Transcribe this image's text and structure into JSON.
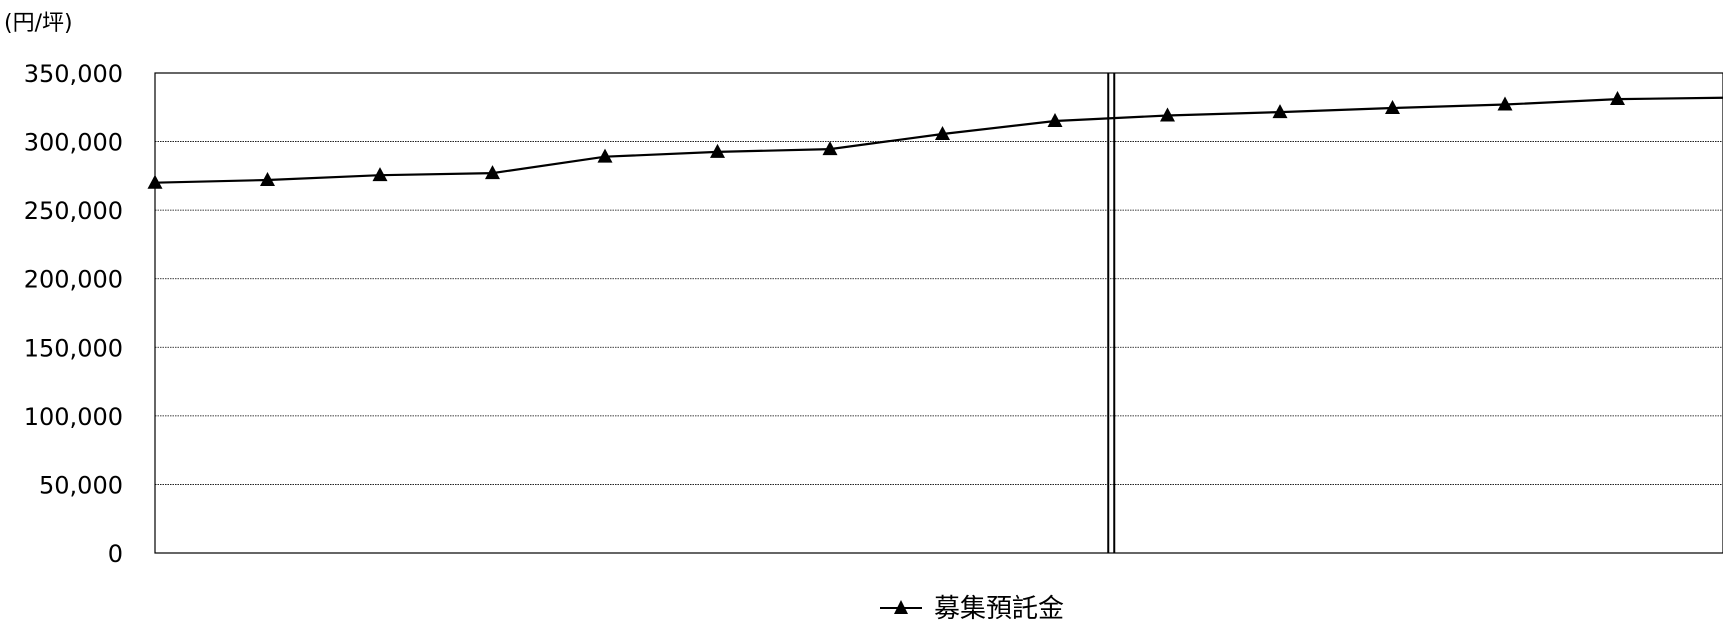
{
  "chart_data": {
    "type": "line",
    "title": "",
    "unit_label": "(円/坪)",
    "xlabel": "",
    "ylabel": "",
    "ylim": [
      0,
      350000
    ],
    "yticks": [
      0,
      50000,
      100000,
      150000,
      200000,
      250000,
      300000,
      350000
    ],
    "ytick_labels": [
      "0",
      "50,000",
      "100,000",
      "150,000",
      "200,000",
      "250,000",
      "300,000",
      "350,000"
    ],
    "grid": true,
    "legend": "bottom-center",
    "divider_after_point": 9,
    "series": [
      {
        "name": "募集預託金",
        "color": "#000000",
        "marker": "triangle",
        "values": [
          270000,
          272000,
          275500,
          277000,
          289000,
          292500,
          294500,
          305500,
          315000,
          319000,
          321500,
          324500,
          327000,
          331000,
          332000
        ]
      }
    ]
  }
}
